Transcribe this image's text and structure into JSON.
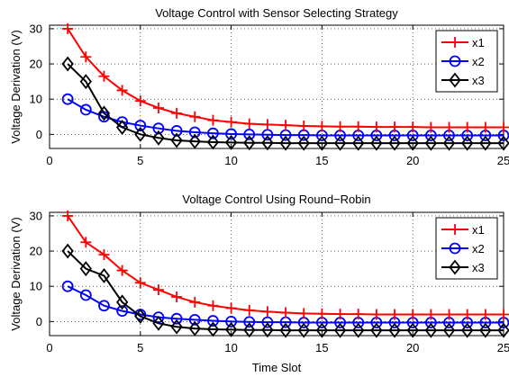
{
  "chart_data": [
    {
      "type": "line",
      "title": "Voltage Control with Sensor Selecting Strategy",
      "xlabel": "",
      "ylabel": "Voltage Derivation (V)",
      "xlim": [
        0,
        25
      ],
      "ylim": [
        -4,
        31
      ],
      "xticks": [
        0,
        5,
        10,
        15,
        20,
        25
      ],
      "yticks": [
        0,
        10,
        20,
        30
      ],
      "grid": true,
      "legend_position": "top-right",
      "series": [
        {
          "name": "x1",
          "color": "#ff0000",
          "marker": "plus",
          "x": [
            1,
            2,
            3,
            4,
            5,
            6,
            7,
            8,
            9,
            10,
            11,
            12,
            13,
            14,
            15,
            16,
            17,
            18,
            19,
            20,
            21,
            22,
            23,
            24,
            25
          ],
          "values": [
            30,
            22,
            16.5,
            12.5,
            9.5,
            7.5,
            6,
            5,
            4,
            3.5,
            3,
            2.8,
            2.6,
            2.4,
            2.3,
            2.2,
            2.2,
            2.1,
            2.1,
            2.1,
            2,
            2,
            2,
            2,
            2
          ]
        },
        {
          "name": "x2",
          "color": "#0000ff",
          "marker": "circle",
          "x": [
            1,
            2,
            3,
            4,
            5,
            6,
            7,
            8,
            9,
            10,
            11,
            12,
            13,
            14,
            15,
            16,
            17,
            18,
            19,
            20,
            21,
            22,
            23,
            24,
            25
          ],
          "values": [
            10,
            7,
            5,
            3.5,
            2.5,
            1.7,
            1,
            0.6,
            0.3,
            0.1,
            0,
            -0.1,
            -0.2,
            -0.2,
            -0.3,
            -0.3,
            -0.3,
            -0.3,
            -0.3,
            -0.3,
            -0.3,
            -0.3,
            -0.3,
            -0.3,
            -0.3
          ]
        },
        {
          "name": "x3",
          "color": "#000000",
          "marker": "diamond",
          "x": [
            1,
            2,
            3,
            4,
            5,
            6,
            7,
            8,
            9,
            10,
            11,
            12,
            13,
            14,
            15,
            16,
            17,
            18,
            19,
            20,
            21,
            22,
            23,
            24,
            25
          ],
          "values": [
            20,
            15,
            6,
            2,
            0,
            -1,
            -1.7,
            -2,
            -2.2,
            -2.3,
            -2.4,
            -2.4,
            -2.5,
            -2.5,
            -2.5,
            -2.5,
            -2.5,
            -2.5,
            -2.5,
            -2.5,
            -2.5,
            -2.5,
            -2.5,
            -2.5,
            -2.5
          ]
        }
      ]
    },
    {
      "type": "line",
      "title": "Voltage Control Using Round−Robin",
      "xlabel": "Time Slot",
      "ylabel": "Voltage Derivation (V)",
      "xlim": [
        0,
        25
      ],
      "ylim": [
        -4,
        31
      ],
      "xticks": [
        0,
        5,
        10,
        15,
        20,
        25
      ],
      "yticks": [
        0,
        10,
        20,
        30
      ],
      "grid": true,
      "legend_position": "top-right",
      "series": [
        {
          "name": "x1",
          "color": "#ff0000",
          "marker": "plus",
          "x": [
            1,
            2,
            3,
            4,
            5,
            6,
            7,
            8,
            9,
            10,
            11,
            12,
            13,
            14,
            15,
            16,
            17,
            18,
            19,
            20,
            21,
            22,
            23,
            24,
            25
          ],
          "values": [
            30,
            22.5,
            19,
            14.5,
            11,
            9,
            7,
            5.5,
            4.5,
            3.8,
            3.2,
            2.8,
            2.5,
            2.3,
            2.2,
            2.1,
            2.1,
            2,
            2,
            2,
            2,
            2,
            2,
            2,
            2
          ]
        },
        {
          "name": "x2",
          "color": "#0000ff",
          "marker": "circle",
          "x": [
            1,
            2,
            3,
            4,
            5,
            6,
            7,
            8,
            9,
            10,
            11,
            12,
            13,
            14,
            15,
            16,
            17,
            18,
            19,
            20,
            21,
            22,
            23,
            24,
            25
          ],
          "values": [
            10,
            7.5,
            4.5,
            3,
            2,
            1.2,
            0.8,
            0.5,
            0.2,
            0,
            -0.1,
            -0.2,
            -0.2,
            -0.3,
            -0.3,
            -0.3,
            -0.3,
            -0.3,
            -0.3,
            -0.3,
            -0.3,
            -0.3,
            -0.3,
            -0.3,
            -0.3
          ]
        },
        {
          "name": "x3",
          "color": "#000000",
          "marker": "diamond",
          "x": [
            1,
            2,
            3,
            4,
            5,
            6,
            7,
            8,
            9,
            10,
            11,
            12,
            13,
            14,
            15,
            16,
            17,
            18,
            19,
            20,
            21,
            22,
            23,
            24,
            25
          ],
          "values": [
            20,
            15,
            13,
            5.5,
            1.5,
            -0.5,
            -1.5,
            -2,
            -2.2,
            -2.3,
            -2.4,
            -2.4,
            -2.5,
            -2.5,
            -2.5,
            -2.5,
            -2.5,
            -2.5,
            -2.5,
            -2.5,
            -2.5,
            -2.5,
            -2.5,
            -2.5,
            -2.5
          ]
        }
      ]
    }
  ]
}
